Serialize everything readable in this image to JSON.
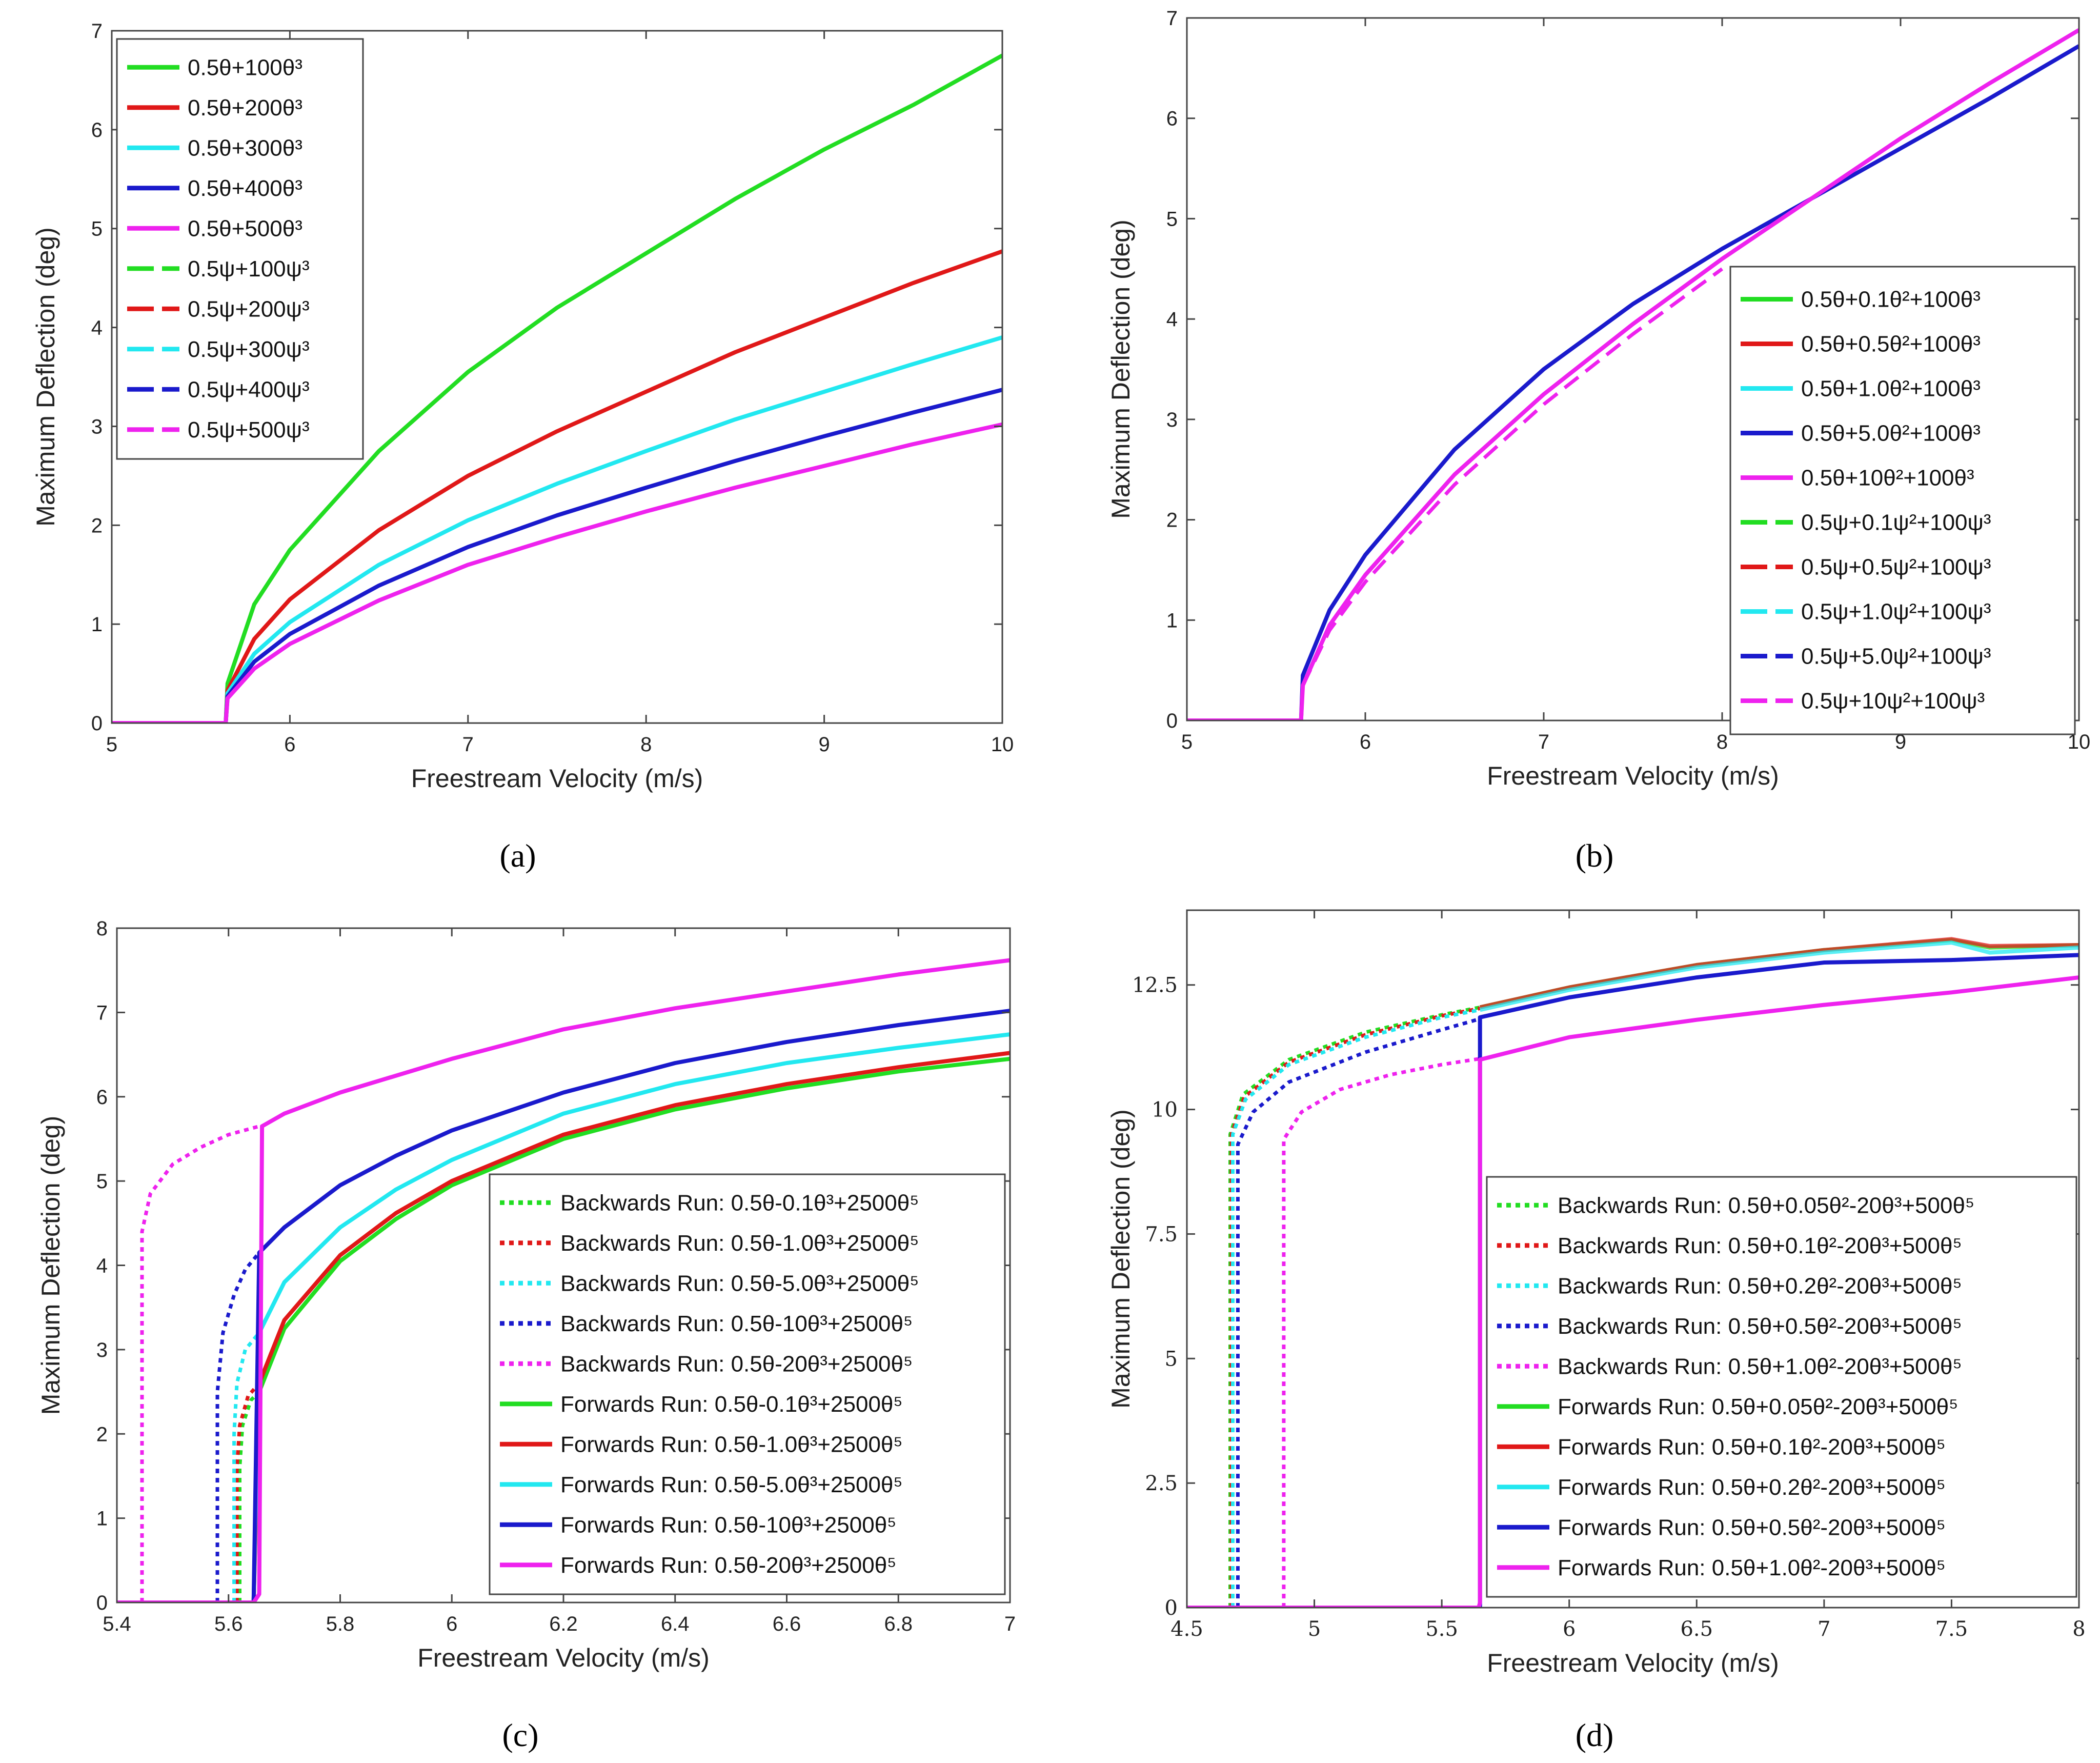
{
  "chart_data": [
    {
      "panel": "a",
      "type": "line",
      "xlabel": "Freestream Velocity (m/s)",
      "ylabel": "Maximum Deflection (deg)",
      "xlim": [
        5,
        10
      ],
      "ylim": [
        0,
        7
      ],
      "xticks": [
        "5",
        "6",
        "7",
        "8",
        "9",
        "10"
      ],
      "yticks": [
        "0",
        "1",
        "2",
        "3",
        "4",
        "5",
        "6",
        "7"
      ],
      "legend": "top-left",
      "series": [
        {
          "name": "0.5θ+100θ³",
          "color": "#22dd22",
          "style": "solid",
          "x": [
            5,
            5.64,
            5.65,
            5.8,
            6,
            6.5,
            7,
            7.5,
            8,
            8.5,
            9,
            9.5,
            10
          ],
          "y": [
            0,
            0,
            0.4,
            1.2,
            1.75,
            2.75,
            3.55,
            4.2,
            4.75,
            5.3,
            5.8,
            6.25,
            6.75
          ]
        },
        {
          "name": "0.5θ+200θ³",
          "color": "#e01818",
          "style": "solid",
          "x": [
            5,
            5.64,
            5.65,
            5.8,
            6,
            6.5,
            7,
            7.5,
            8,
            8.5,
            9,
            9.5,
            10
          ],
          "y": [
            0,
            0,
            0.33,
            0.85,
            1.25,
            1.95,
            2.5,
            2.95,
            3.35,
            3.75,
            4.1,
            4.45,
            4.77
          ]
        },
        {
          "name": "0.5θ+300θ³",
          "color": "#22e8f0",
          "style": "solid",
          "x": [
            5,
            5.64,
            5.65,
            5.8,
            6,
            6.5,
            7,
            7.5,
            8,
            8.5,
            9,
            9.5,
            10
          ],
          "y": [
            0,
            0,
            0.3,
            0.7,
            1.02,
            1.6,
            2.05,
            2.42,
            2.75,
            3.07,
            3.35,
            3.63,
            3.9
          ]
        },
        {
          "name": "0.5θ+400θ³",
          "color": "#1a1acc",
          "style": "solid",
          "x": [
            5,
            5.64,
            5.65,
            5.8,
            6,
            6.5,
            7,
            7.5,
            8,
            8.5,
            9,
            9.5,
            10
          ],
          "y": [
            0,
            0,
            0.27,
            0.62,
            0.9,
            1.39,
            1.78,
            2.1,
            2.38,
            2.65,
            2.9,
            3.14,
            3.37
          ]
        },
        {
          "name": "0.5θ+500θ³",
          "color": "#ee22ee",
          "style": "solid",
          "x": [
            5,
            5.64,
            5.65,
            5.8,
            6,
            6.5,
            7,
            7.5,
            8,
            8.5,
            9,
            9.5,
            10
          ],
          "y": [
            0,
            0,
            0.25,
            0.55,
            0.8,
            1.24,
            1.6,
            1.88,
            2.14,
            2.38,
            2.6,
            2.82,
            3.02
          ]
        },
        {
          "name": "0.5ψ+100ψ³",
          "color": "#22dd22",
          "style": "dashed",
          "x": [],
          "y": []
        },
        {
          "name": "0.5ψ+200ψ³",
          "color": "#e01818",
          "style": "dashed",
          "x": [],
          "y": []
        },
        {
          "name": "0.5ψ+300ψ³",
          "color": "#22e8f0",
          "style": "dashed",
          "x": [],
          "y": []
        },
        {
          "name": "0.5ψ+400ψ³",
          "color": "#1a1acc",
          "style": "dashed",
          "x": [],
          "y": []
        },
        {
          "name": "0.5ψ+500ψ³",
          "color": "#ee22ee",
          "style": "dashed",
          "x": [],
          "y": []
        }
      ]
    },
    {
      "panel": "b",
      "type": "line",
      "xlabel": "Freestream Velocity (m/s)",
      "ylabel": "Maximum Deflection (deg)",
      "xlim": [
        5,
        10
      ],
      "ylim": [
        0,
        7
      ],
      "xticks": [
        "5",
        "6",
        "7",
        "8",
        "9",
        "10"
      ],
      "yticks": [
        "0",
        "1",
        "2",
        "3",
        "4",
        "5",
        "6",
        "7"
      ],
      "legend": "right",
      "series": [
        {
          "name": "0.5θ+0.1θ²+100θ³",
          "color": "#22dd22",
          "style": "solid",
          "x": [],
          "y": []
        },
        {
          "name": "0.5θ+0.5θ²+100θ³",
          "color": "#e01818",
          "style": "solid",
          "x": [],
          "y": []
        },
        {
          "name": "0.5θ+1.0θ²+100θ³",
          "color": "#22e8f0",
          "style": "solid",
          "x": [],
          "y": []
        },
        {
          "name": "0.5θ+5.0θ²+100θ³",
          "color": "#1a1acc",
          "style": "solid",
          "x": [
            5,
            5.64,
            5.65,
            5.8,
            6,
            6.5,
            7,
            7.5,
            8,
            8.5,
            9,
            9.5,
            10
          ],
          "y": [
            0,
            0,
            0.45,
            1.1,
            1.65,
            2.7,
            3.5,
            4.15,
            4.7,
            5.2,
            5.7,
            6.2,
            6.72
          ]
        },
        {
          "name": "0.5θ+10θ²+100θ³",
          "color": "#ee22ee",
          "style": "solid",
          "x": [
            5,
            5.64,
            5.65,
            5.8,
            6,
            6.5,
            7,
            7.5,
            8,
            8.5,
            9,
            9.5,
            10
          ],
          "y": [
            0,
            0,
            0.35,
            0.95,
            1.45,
            2.45,
            3.25,
            3.95,
            4.6,
            5.2,
            5.8,
            6.35,
            6.88
          ]
        },
        {
          "name": "0.5ψ+0.1ψ²+100ψ³",
          "color": "#22dd22",
          "style": "dashed",
          "x": [],
          "y": []
        },
        {
          "name": "0.5ψ+0.5ψ²+100ψ³",
          "color": "#e01818",
          "style": "dashed",
          "x": [],
          "y": []
        },
        {
          "name": "0.5ψ+1.0ψ²+100ψ³",
          "color": "#22e8f0",
          "style": "dashed",
          "x": [],
          "y": []
        },
        {
          "name": "0.5ψ+5.0ψ²+100ψ³",
          "color": "#1a1acc",
          "style": "dashed",
          "x": [],
          "y": []
        },
        {
          "name": "0.5ψ+10ψ²+100ψ³",
          "color": "#ee22ee",
          "style": "dashed",
          "x": [
            5.65,
            5.8,
            6,
            6.5,
            7,
            7.5,
            8
          ],
          "y": [
            0.35,
            0.9,
            1.38,
            2.35,
            3.15,
            3.85,
            4.5
          ]
        }
      ]
    },
    {
      "panel": "c",
      "type": "line",
      "xlabel": "Freestream Velocity (m/s)",
      "ylabel": "Maximum Deflection (deg)",
      "xlim": [
        5.4,
        7
      ],
      "ylim": [
        0,
        8
      ],
      "xticks": [
        "5.4",
        "5.6",
        "5.8",
        "6",
        "6.2",
        "6.4",
        "6.6",
        "6.8",
        "7"
      ],
      "yticks": [
        "0",
        "1",
        "2",
        "3",
        "4",
        "5",
        "6",
        "7",
        "8"
      ],
      "legend": "bottom-right",
      "series": [
        {
          "name": "Backwards Run: 0.5θ-0.1θ³+2500θ⁵",
          "color": "#22dd22",
          "style": "dotted",
          "x": [
            5.62,
            5.62,
            5.625,
            5.64,
            5.655
          ],
          "y": [
            0,
            1.6,
            2.1,
            2.4,
            2.5
          ]
        },
        {
          "name": "Backwards Run: 0.5θ-1.0θ³+2500θ⁵",
          "color": "#e01818",
          "style": "dotted",
          "x": [
            5.615,
            5.615,
            5.62,
            5.635,
            5.655
          ],
          "y": [
            0,
            1.6,
            2.1,
            2.45,
            2.6
          ]
        },
        {
          "name": "Backwards Run: 0.5θ-5.0θ³+2500θ⁵",
          "color": "#22e8f0",
          "style": "dotted",
          "x": [
            5.61,
            5.61,
            5.615,
            5.63,
            5.655
          ],
          "y": [
            0,
            2.0,
            2.6,
            3.0,
            3.2
          ]
        },
        {
          "name": "Backwards Run: 0.5θ-10θ³+2500θ⁵",
          "color": "#1a1acc",
          "style": "dotted",
          "x": [
            5.58,
            5.58,
            5.59,
            5.61,
            5.63,
            5.655
          ],
          "y": [
            0,
            2.5,
            3.2,
            3.65,
            3.95,
            4.15
          ]
        },
        {
          "name": "Backwards Run: 0.5θ-20θ³+2500θ⁵",
          "color": "#ee22ee",
          "style": "dotted",
          "x": [
            5.445,
            5.445,
            5.46,
            5.5,
            5.55,
            5.6,
            5.655
          ],
          "y": [
            0,
            4.4,
            4.85,
            5.2,
            5.4,
            5.55,
            5.65
          ]
        },
        {
          "name": "Forwards Run: 0.5θ-0.1θ³+2500θ⁵",
          "color": "#22dd22",
          "style": "solid",
          "x": [
            5.4,
            5.645,
            5.655,
            5.7,
            5.8,
            5.9,
            6,
            6.2,
            6.4,
            6.6,
            6.8,
            7
          ],
          "y": [
            0,
            0,
            2.5,
            3.25,
            4.05,
            4.55,
            4.95,
            5.5,
            5.85,
            6.1,
            6.3,
            6.45
          ]
        },
        {
          "name": "Forwards Run: 0.5θ-1.0θ³+2500θ⁵",
          "color": "#e01818",
          "style": "solid",
          "x": [
            5.4,
            5.645,
            5.655,
            5.7,
            5.8,
            5.9,
            6,
            6.2,
            6.4,
            6.6,
            6.8,
            7
          ],
          "y": [
            0,
            0,
            2.6,
            3.35,
            4.12,
            4.62,
            5.0,
            5.55,
            5.9,
            6.15,
            6.35,
            6.52
          ]
        },
        {
          "name": "Forwards Run: 0.5θ-5.0θ³+2500θ⁵",
          "color": "#22e8f0",
          "style": "solid",
          "x": [
            5.4,
            5.645,
            5.655,
            5.7,
            5.8,
            5.9,
            6,
            6.2,
            6.4,
            6.6,
            6.8,
            7
          ],
          "y": [
            0,
            0,
            3.2,
            3.8,
            4.45,
            4.9,
            5.25,
            5.8,
            6.15,
            6.4,
            6.58,
            6.74
          ]
        },
        {
          "name": "Forwards Run: 0.5θ-10θ³+2500θ⁵",
          "color": "#1a1acc",
          "style": "solid",
          "x": [
            5.4,
            5.645,
            5.655,
            5.7,
            5.8,
            5.9,
            6,
            6.2,
            6.4,
            6.6,
            6.8,
            7
          ],
          "y": [
            0,
            0,
            4.15,
            4.45,
            4.95,
            5.3,
            5.6,
            6.05,
            6.4,
            6.65,
            6.85,
            7.02
          ]
        },
        {
          "name": "Forwards Run: 0.5θ-20θ³+2500θ⁵",
          "color": "#ee22ee",
          "style": "solid",
          "x": [
            5.4,
            5.645,
            5.655,
            5.66,
            5.7,
            5.8,
            6,
            6.2,
            6.4,
            6.6,
            6.8,
            7
          ],
          "y": [
            0,
            0,
            0.1,
            5.65,
            5.8,
            6.05,
            6.45,
            6.8,
            7.05,
            7.25,
            7.45,
            7.62
          ]
        }
      ]
    },
    {
      "panel": "d",
      "type": "line",
      "xlabel": "Freestream Velocity (m/s)",
      "ylabel": "Maximum Deflection (deg)",
      "xlim": [
        4.5,
        8
      ],
      "ylim": [
        0,
        14
      ],
      "xticks": [
        "4.5",
        "5",
        "5.5",
        "6",
        "6.5",
        "7",
        "7.5",
        "8"
      ],
      "yticks": [
        "0",
        "2.5",
        "5",
        "7.5",
        "10",
        "12.5"
      ],
      "legend": "bottom-right",
      "series": [
        {
          "name": "Backwards Run: 0.5θ+0.05θ²-20θ³+500θ⁵",
          "color": "#22dd22",
          "style": "dotted",
          "x": [
            4.67,
            4.67,
            4.72,
            4.9,
            5.2,
            5.5,
            5.65
          ],
          "y": [
            0,
            9.5,
            10.3,
            11.0,
            11.55,
            11.9,
            12.05
          ]
        },
        {
          "name": "Backwards Run: 0.5θ+0.1θ²-20θ³+500θ⁵",
          "color": "#e01818",
          "style": "dotted",
          "x": [
            4.675,
            4.675,
            4.725,
            4.9,
            5.2,
            5.5,
            5.65
          ],
          "y": [
            0,
            9.5,
            10.25,
            10.95,
            11.5,
            11.88,
            12.03
          ]
        },
        {
          "name": "Backwards Run: 0.5θ+0.2θ²-20θ³+500θ⁵",
          "color": "#22e8f0",
          "style": "dotted",
          "x": [
            4.68,
            4.68,
            4.73,
            4.9,
            5.2,
            5.5,
            5.65
          ],
          "y": [
            0,
            9.5,
            10.2,
            10.9,
            11.45,
            11.85,
            12.0
          ]
        },
        {
          "name": "Backwards Run: 0.5θ+0.5θ²-20θ³+500θ⁵",
          "color": "#1a1acc",
          "style": "dotted",
          "x": [
            4.7,
            4.7,
            4.76,
            4.9,
            5.2,
            5.5,
            5.65
          ],
          "y": [
            0,
            9.3,
            9.95,
            10.55,
            11.15,
            11.6,
            11.82
          ]
        },
        {
          "name": "Backwards Run: 0.5θ+1.0θ²-20θ³+500θ⁵",
          "color": "#ee22ee",
          "style": "dotted",
          "x": [
            4.88,
            4.88,
            4.95,
            5.1,
            5.3,
            5.5,
            5.65
          ],
          "y": [
            0,
            9.4,
            9.95,
            10.4,
            10.7,
            10.9,
            11.02
          ]
        },
        {
          "name": "Forwards Run: 0.5θ+0.05θ²-20θ³+500θ⁵",
          "color": "#22dd22",
          "style": "solid",
          "x": [
            5.65,
            6,
            6.5,
            7,
            7.5,
            7.65,
            8
          ],
          "y": [
            12.05,
            12.45,
            12.9,
            13.2,
            13.4,
            13.25,
            13.3
          ]
        },
        {
          "name": "Forwards Run: 0.5θ+0.1θ²-20θ³+500θ⁵",
          "color": "#e01818",
          "style": "solid",
          "x": [
            5.65,
            6,
            6.5,
            7,
            7.5,
            7.65,
            8
          ],
          "y": [
            12.05,
            12.45,
            12.9,
            13.2,
            13.42,
            13.28,
            13.3
          ]
        },
        {
          "name": "Forwards Run: 0.5θ+0.2θ²-20θ³+500θ⁵",
          "color": "#22e8f0",
          "style": "solid",
          "x": [
            5.65,
            6,
            6.5,
            7,
            7.5,
            7.65,
            8
          ],
          "y": [
            12.0,
            12.4,
            12.85,
            13.15,
            13.35,
            13.15,
            13.25
          ]
        },
        {
          "name": "Forwards Run: 0.5θ+0.5θ²-20θ³+500θ⁵",
          "color": "#1a1acc",
          "style": "solid",
          "x": [
            5.65,
            5.65,
            6,
            6.5,
            7,
            7.5,
            8
          ],
          "y": [
            0,
            11.85,
            12.25,
            12.65,
            12.95,
            13.0,
            13.1
          ]
        },
        {
          "name": "Forwards Run: 0.5θ+1.0θ²-20θ³+500θ⁵",
          "color": "#ee22ee",
          "style": "solid",
          "x": [
            4.5,
            5.645,
            5.65,
            5.65,
            6,
            6.5,
            7,
            7.5,
            8
          ],
          "y": [
            0,
            0,
            0.1,
            11.0,
            11.45,
            11.8,
            12.1,
            12.35,
            12.65
          ]
        }
      ]
    }
  ],
  "panel_labels": [
    "(a)",
    "(b)",
    "(c)",
    "(d)"
  ]
}
